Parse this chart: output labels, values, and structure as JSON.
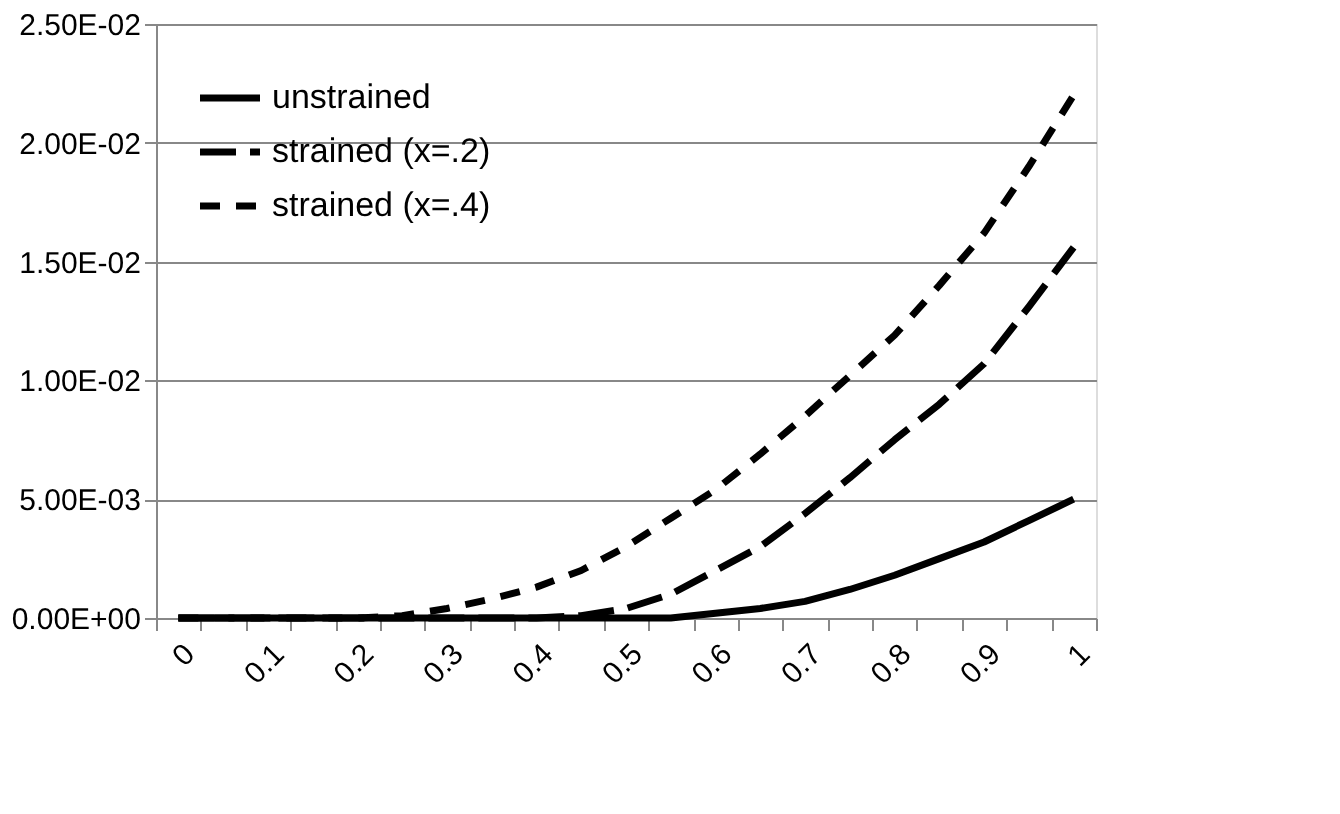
{
  "chart_data": {
    "type": "line",
    "categories": [
      "0",
      null,
      "0.1",
      null,
      "0.2",
      null,
      "0.3",
      null,
      "0.4",
      null,
      "0.5",
      null,
      "0.6",
      null,
      "0.7",
      null,
      "0.8",
      null,
      "0.9",
      null,
      "1"
    ],
    "series": [
      {
        "name": "unstrained",
        "color": "#000000",
        "line_style": "solid",
        "values": [
          0,
          0,
          0,
          0,
          0,
          0,
          0,
          0,
          0,
          0,
          0,
          0,
          0.0002,
          0.0004,
          0.0007,
          0.0012,
          0.0018,
          0.0025,
          0.0032,
          0.0041,
          0.005
        ]
      },
      {
        "name": "strained (x=.2)",
        "color": "#000000",
        "line_style": "dashed",
        "values": [
          0,
          0,
          0,
          0,
          0,
          0,
          0,
          0,
          0,
          0.0001,
          0.0004,
          0.001,
          0.002,
          0.003,
          0.0044,
          0.0059,
          0.0075,
          0.009,
          0.0107,
          0.0131,
          0.0156
        ]
      },
      {
        "name": "strained (x=.4)",
        "color": "#000000",
        "line_style": "dashed",
        "values": [
          0,
          0,
          0,
          0,
          0,
          0.0001,
          0.0004,
          0.0008,
          0.0013,
          0.002,
          0.003,
          0.0042,
          0.0054,
          0.0069,
          0.0085,
          0.0102,
          0.0119,
          0.014,
          0.0162,
          0.019,
          0.022
        ]
      }
    ],
    "ylim": [
      0,
      0.025
    ],
    "yticks": [
      {
        "value": 0,
        "label": "0.00E+00"
      },
      {
        "value": 0.005,
        "label": "5.00E-03"
      },
      {
        "value": 0.01,
        "label": "1.00E-02"
      },
      {
        "value": 0.015,
        "label": "1.50E-02"
      },
      {
        "value": 0.02,
        "label": "2.00E-02"
      },
      {
        "value": 0.025,
        "label": "2.50E-02"
      }
    ],
    "grid": "y",
    "legend": "top left",
    "marker": "none"
  }
}
